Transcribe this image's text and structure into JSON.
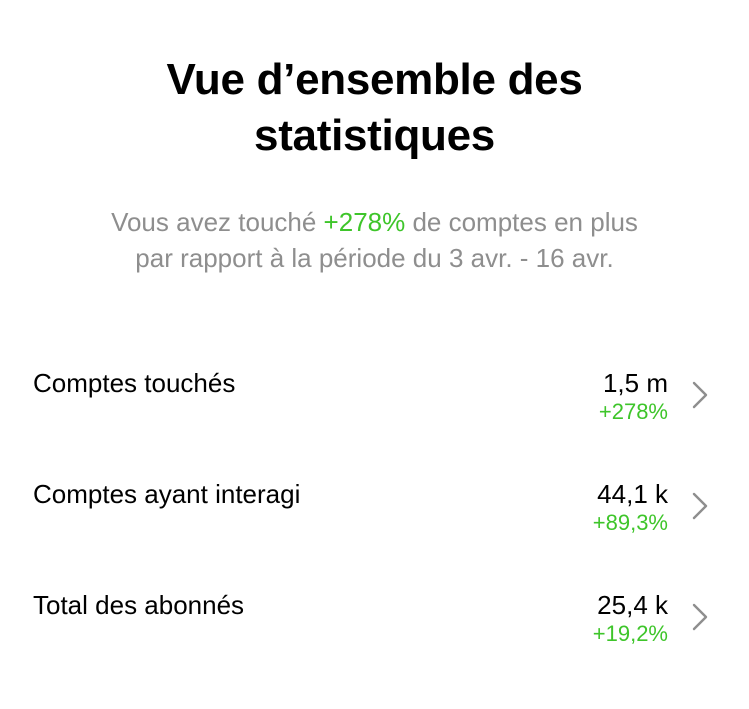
{
  "header": {
    "title_line1": "Vue d’ensemble des",
    "title_line2": "statistiques"
  },
  "summary": {
    "line1_before": "Vous avez touché ",
    "line1_highlight": "+278%",
    "line1_after": " de comptes en plus",
    "line2": "par rapport à la période du 3 avr. - 16 avr."
  },
  "stats": [
    {
      "label": "Comptes touchés",
      "value": "1,5 m",
      "change": "+278%"
    },
    {
      "label": "Comptes ayant interagi",
      "value": "44,1 k",
      "change": "+89,3%"
    },
    {
      "label": "Total des abonnés",
      "value": "25,4 k",
      "change": "+19,2%"
    }
  ],
  "colors": {
    "positive": "#3ec52a",
    "muted_text": "#8e8e8e",
    "chevron": "#8e8e8e"
  },
  "icons": {
    "row_arrow": "chevron-right-icon"
  }
}
